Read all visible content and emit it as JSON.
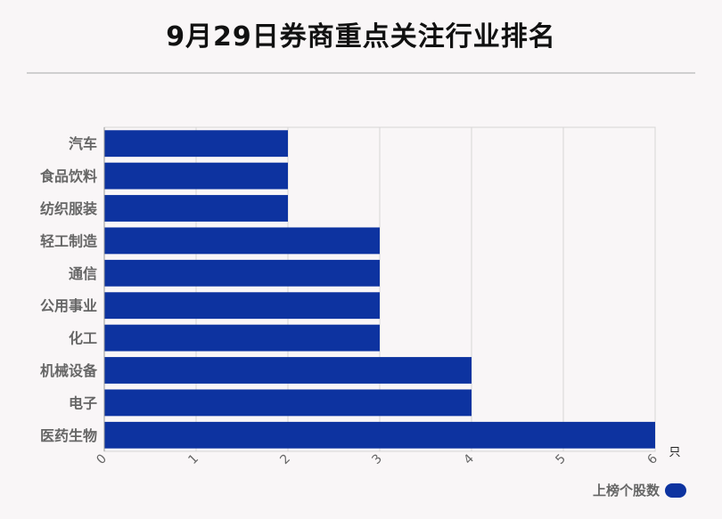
{
  "header": {
    "title": "9月29日券商重点关注行业排名"
  },
  "colors": {
    "bar": "#0d33a0",
    "grid": "#d6d6d6",
    "axis_text": "#666666"
  },
  "legend": {
    "label": "上榜个股数"
  },
  "chart_data": {
    "type": "bar",
    "orientation": "horizontal",
    "title": "9月29日券商重点关注行业排名",
    "categories": [
      "汽车",
      "食品饮料",
      "纺织服装",
      "轻工制造",
      "通信",
      "公用事业",
      "化工",
      "机械设备",
      "电子",
      "医药生物"
    ],
    "series": [
      {
        "name": "上榜个股数",
        "values": [
          2,
          2,
          2,
          3,
          3,
          3,
          3,
          4,
          4,
          6
        ]
      }
    ],
    "xlim": [
      0,
      6
    ],
    "xticks": [
      0,
      1,
      2,
      3,
      4,
      5,
      6
    ],
    "x_unit": "只",
    "grid": true,
    "legend_position": "bottom-right"
  }
}
